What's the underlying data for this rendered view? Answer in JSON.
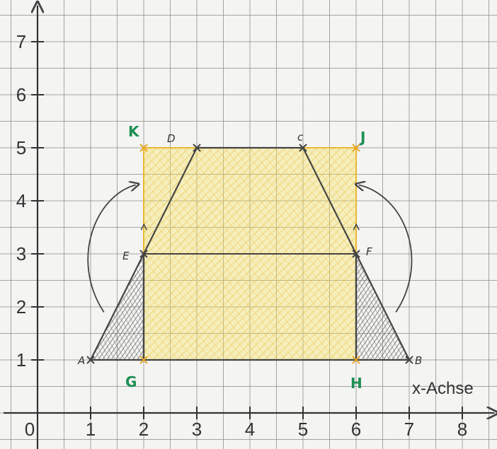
{
  "axes": {
    "x_ticks": [
      "0",
      "1",
      "2",
      "3",
      "4",
      "5",
      "6",
      "7",
      "8"
    ],
    "y_ticks": [
      "1",
      "2",
      "3",
      "4",
      "5",
      "6",
      "7"
    ],
    "x_label": "x-Achse"
  },
  "points": [
    {
      "id": "A",
      "label": "A",
      "x": 1,
      "y": 1,
      "color": "#333333"
    },
    {
      "id": "B",
      "label": "B",
      "x": 7,
      "y": 1,
      "color": "#333333"
    },
    {
      "id": "C",
      "label": "c",
      "x": 5,
      "y": 5,
      "color": "#333333"
    },
    {
      "id": "D",
      "label": "D",
      "x": 3,
      "y": 5,
      "color": "#333333"
    },
    {
      "id": "E",
      "label": "E",
      "x": 2,
      "y": 3,
      "color": "#333333"
    },
    {
      "id": "F",
      "label": "F",
      "x": 6,
      "y": 3,
      "color": "#333333"
    },
    {
      "id": "G",
      "label": "G",
      "x": 2,
      "y": 1,
      "color": "#1f8f54"
    },
    {
      "id": "H",
      "label": "H",
      "x": 6,
      "y": 1,
      "color": "#1f8f54"
    },
    {
      "id": "J",
      "label": "J",
      "x": 6,
      "y": 5,
      "color": "#1f8f54"
    },
    {
      "id": "K",
      "label": "K",
      "x": 2,
      "y": 5,
      "color": "#1f8f54"
    }
  ],
  "colors": {
    "rectangle_fill": "#f7e25a",
    "rectangle_stroke": "#e8b830",
    "pencil": "#444444",
    "grid": "#8a8a8a"
  }
}
